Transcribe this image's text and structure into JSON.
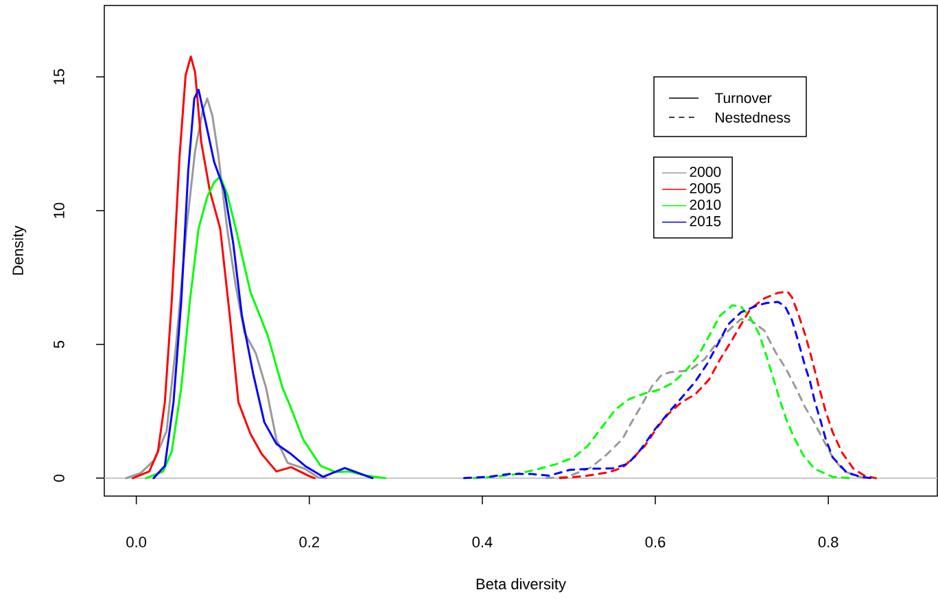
{
  "chart_data": {
    "type": "line",
    "xlabel": "Beta diversity",
    "ylabel": "Density",
    "xlim": [
      -0.037,
      0.926
    ],
    "ylim": [
      -0.67,
      17.67
    ],
    "xticks": [
      {
        "value": 0,
        "label": "0.0"
      },
      {
        "value": 0.2,
        "label": "0.2"
      },
      {
        "value": 0.4,
        "label": "0.4"
      },
      {
        "value": 0.6,
        "label": "0.6"
      },
      {
        "value": 0.8,
        "label": "0.8"
      }
    ],
    "yticks": [
      0,
      5,
      10,
      15
    ],
    "legend": "top right",
    "annotations": [
      "Turnover",
      "Nestedness"
    ],
    "ref_lines": [
      {
        "axis": "y",
        "value": 0,
        "color": "#bebebe"
      }
    ],
    "series": [
      {
        "name": "2000",
        "color": "#999999",
        "line_style": "solid",
        "x": [
          -0.012,
          0.005,
          0.021,
          0.035,
          0.046,
          0.058,
          0.068,
          0.077,
          0.082,
          0.088,
          0.095,
          0.105,
          0.115,
          0.125,
          0.138,
          0.15,
          0.162,
          0.175,
          0.195,
          0.21,
          0.22
        ],
        "values": [
          0,
          0.19,
          0.68,
          1.76,
          5.0,
          9.33,
          12.24,
          13.76,
          14.19,
          13.54,
          12.03,
          9.33,
          7.17,
          5.44,
          4.68,
          3.38,
          1.44,
          0.57,
          0.35,
          0.03,
          0
        ]
      },
      {
        "name": "2005",
        "color": "#ff0000",
        "line_style": "solid",
        "x": [
          -0.004,
          0.015,
          0.025,
          0.033,
          0.041,
          0.05,
          0.057,
          0.063,
          0.068,
          0.075,
          0.085,
          0.097,
          0.108,
          0.118,
          0.132,
          0.145,
          0.162,
          0.179,
          0.199,
          0.206
        ],
        "values": [
          0,
          0.25,
          1.0,
          2.84,
          6.63,
          12.03,
          15.06,
          15.76,
          15.17,
          12.57,
          10.74,
          9.33,
          6.09,
          2.84,
          1.65,
          0.9,
          0.25,
          0.41,
          0.09,
          0
        ]
      },
      {
        "name": "2010",
        "color": "#00ff00",
        "line_style": "solid",
        "x": [
          0.011,
          0.031,
          0.041,
          0.052,
          0.062,
          0.072,
          0.082,
          0.09,
          0.097,
          0.105,
          0.115,
          0.132,
          0.152,
          0.169,
          0.176,
          0.185,
          0.193,
          0.213,
          0.23,
          0.246,
          0.266,
          0.288
        ],
        "values": [
          0,
          0.25,
          1.0,
          3.38,
          6.63,
          9.33,
          10.52,
          11.06,
          11.27,
          10.63,
          9.33,
          6.95,
          5.33,
          3.38,
          2.84,
          2.1,
          1.44,
          0.46,
          0.23,
          0.25,
          0.09,
          0
        ]
      },
      {
        "name": "2015",
        "color": "#0000ff",
        "line_style": "solid",
        "x": [
          0.02,
          0.033,
          0.043,
          0.052,
          0.06,
          0.067,
          0.072,
          0.08,
          0.09,
          0.102,
          0.112,
          0.122,
          0.135,
          0.148,
          0.162,
          0.179,
          0.195,
          0.216,
          0.241,
          0.273
        ],
        "values": [
          0,
          0.46,
          2.84,
          6.63,
          11.49,
          14.19,
          14.52,
          13.33,
          11.82,
          10.74,
          8.79,
          6.09,
          3.92,
          2.09,
          1.28,
          0.9,
          0.46,
          0.05,
          0.38,
          0
        ]
      },
      {
        "color": "#999999",
        "line_style": "dashed",
        "x": [
          0.474,
          0.498,
          0.525,
          0.543,
          0.562,
          0.572,
          0.583,
          0.596,
          0.607,
          0.617,
          0.64,
          0.657,
          0.673,
          0.686,
          0.699,
          0.71,
          0.726,
          0.739,
          0.752,
          0.763,
          0.773,
          0.784,
          0.795,
          0.805,
          0.818,
          0.832,
          0.842
        ],
        "values": [
          0,
          0.05,
          0.39,
          0.86,
          1.46,
          2.06,
          2.66,
          3.43,
          3.85,
          3.96,
          4.03,
          4.45,
          5.14,
          5.56,
          5.95,
          5.91,
          5.52,
          4.71,
          4.03,
          3.34,
          2.66,
          2.06,
          1.38,
          0.78,
          0.26,
          0.09,
          0
        ]
      },
      {
        "color": "#ff0000",
        "line_style": "dashed",
        "x": [
          0.49,
          0.519,
          0.546,
          0.562,
          0.575,
          0.588,
          0.602,
          0.615,
          0.63,
          0.646,
          0.662,
          0.675,
          0.689,
          0.699,
          0.71,
          0.726,
          0.742,
          0.753,
          0.758,
          0.765,
          0.773,
          0.781,
          0.789,
          0.797,
          0.805,
          0.816,
          0.829,
          0.842,
          0.855
        ],
        "values": [
          0,
          0.08,
          0.22,
          0.39,
          0.78,
          1.21,
          1.89,
          2.4,
          2.83,
          3.13,
          3.68,
          4.45,
          5.18,
          5.74,
          6.33,
          6.72,
          6.93,
          6.97,
          6.76,
          6.16,
          5.39,
          4.45,
          3.43,
          2.49,
          1.72,
          0.95,
          0.35,
          0.09,
          0
        ]
      },
      {
        "color": "#00ff00",
        "line_style": "dashed",
        "x": [
          0.39,
          0.414,
          0.437,
          0.461,
          0.485,
          0.506,
          0.522,
          0.538,
          0.554,
          0.57,
          0.588,
          0.604,
          0.62,
          0.633,
          0.649,
          0.662,
          0.675,
          0.689,
          0.699,
          0.71,
          0.72,
          0.728,
          0.736,
          0.744,
          0.752,
          0.76,
          0.771,
          0.784,
          0.805,
          0.824
        ],
        "values": [
          0,
          0.05,
          0.14,
          0.31,
          0.52,
          0.78,
          1.21,
          1.89,
          2.57,
          2.96,
          3.17,
          3.3,
          3.56,
          3.94,
          4.54,
          5.31,
          6.08,
          6.46,
          6.42,
          5.99,
          5.39,
          4.62,
          3.77,
          2.91,
          2.15,
          1.55,
          0.86,
          0.35,
          0.05,
          0
        ]
      },
      {
        "color": "#0000ff",
        "line_style": "dashed",
        "x": [
          0.379,
          0.408,
          0.432,
          0.456,
          0.477,
          0.501,
          0.525,
          0.551,
          0.567,
          0.578,
          0.588,
          0.599,
          0.615,
          0.63,
          0.646,
          0.66,
          0.673,
          0.684,
          0.699,
          0.718,
          0.729,
          0.742,
          0.75,
          0.758,
          0.765,
          0.773,
          0.779,
          0.784,
          0.791,
          0.797,
          0.805,
          0.821,
          0.837,
          0.85
        ],
        "values": [
          0,
          0.05,
          0.16,
          0.16,
          0.09,
          0.31,
          0.35,
          0.37,
          0.52,
          0.86,
          1.29,
          1.8,
          2.44,
          2.99,
          3.6,
          4.28,
          5.05,
          5.74,
          6.2,
          6.46,
          6.55,
          6.59,
          6.42,
          5.91,
          5.14,
          4.2,
          3.6,
          2.91,
          2.15,
          1.46,
          0.78,
          0.22,
          0.05,
          0
        ]
      }
    ]
  }
}
